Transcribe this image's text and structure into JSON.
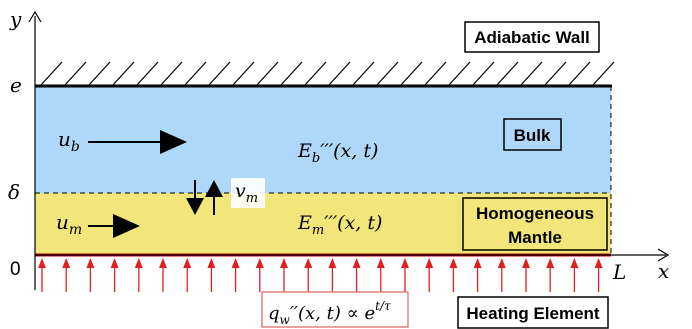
{
  "axes": {
    "y_label": "y",
    "x_label": "x",
    "origin_label": "0",
    "e_label": "e",
    "delta_label": "δ",
    "length_label": "L"
  },
  "labels": {
    "adiabatic_wall": "Adiabatic Wall",
    "bulk": "Bulk",
    "homogeneous_line1": "Homogeneous",
    "homogeneous_line2": "Mantle",
    "heating_element": "Heating Element"
  },
  "math": {
    "u_b_main": "u",
    "u_b_sub": "b",
    "u_m_main": "u",
    "u_m_sub": "m",
    "v_m_main": "v",
    "v_m_sub": "m",
    "E_b_main": "E",
    "E_b_sub": "b",
    "E_b_rest": "′′′(x, t)",
    "E_m_main": "E",
    "E_m_sub": "m",
    "E_m_rest": "′′′(x, t)",
    "q_main": "q",
    "q_sub": "w",
    "q_rest": "′′(x, t) ∝ e",
    "q_exp": "t/τ"
  },
  "colors": {
    "bulk_fill": "#add8f7",
    "mantle_fill": "#f2e67a",
    "arrow_red": "#e02020",
    "box_border_red": "#e06060"
  }
}
